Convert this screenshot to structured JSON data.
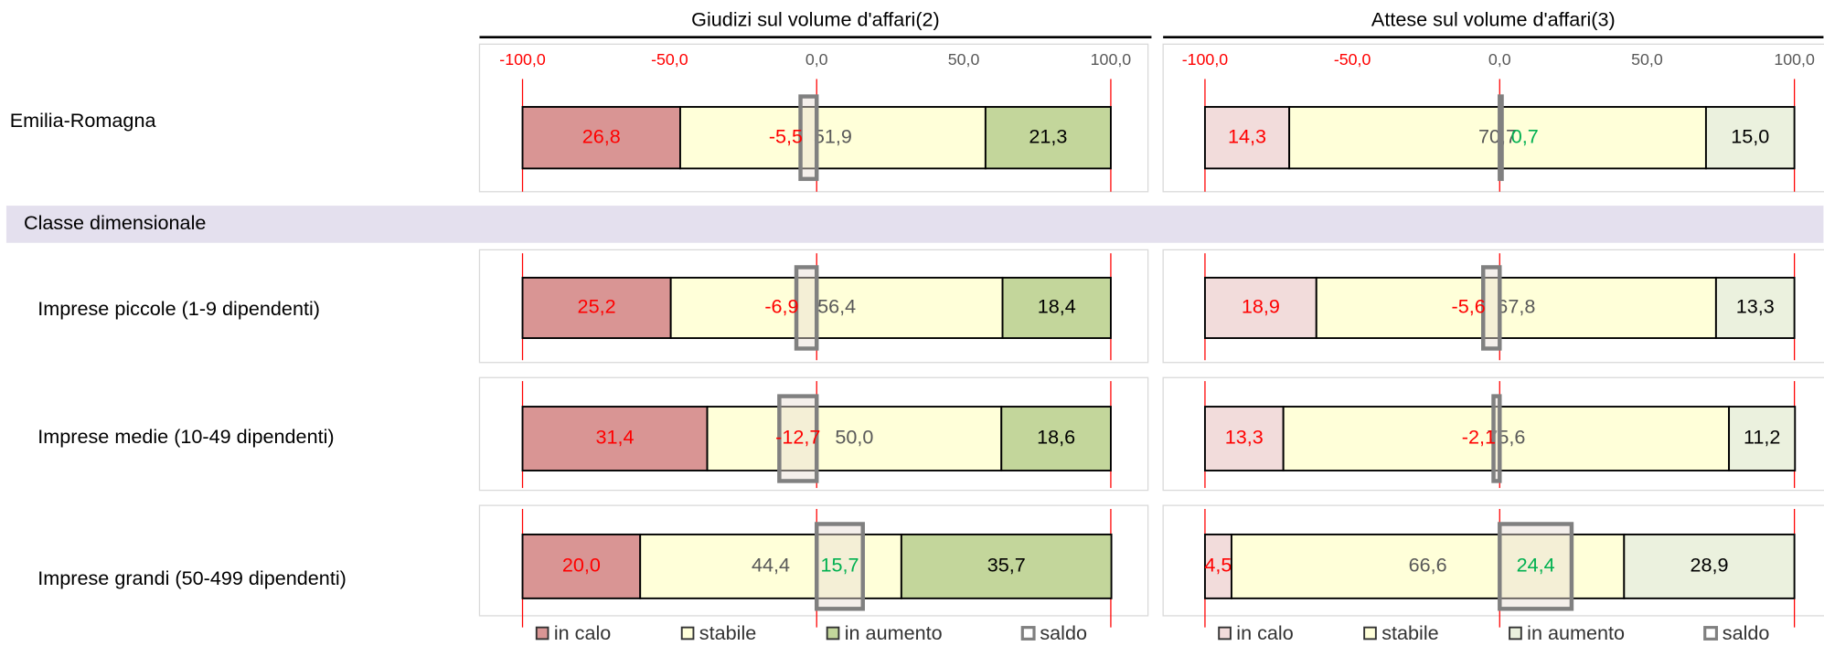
{
  "chart_data": {
    "type": "bar",
    "categories": [
      "Emilia-Romagna",
      "Imprese piccole (1-9 dipendenti)",
      "Imprese medie (10-49 dipendenti)",
      "Imprese grandi (50-499 dipendenti)"
    ],
    "section_label": "Classe dimensionale",
    "panels": [
      {
        "title": "Giudizi sul volume d'affari(2)",
        "xlim": [
          -100,
          100
        ],
        "xticks": [
          {
            "value": -100,
            "label": "-100,0"
          },
          {
            "value": -50,
            "label": "-50,0"
          },
          {
            "value": 0,
            "label": "0,0"
          },
          {
            "value": 50,
            "label": "50,0"
          },
          {
            "value": 100,
            "label": "100,0"
          }
        ],
        "series": [
          {
            "name": "in calo",
            "color": "#d99594",
            "label_color": "#ff0000",
            "values": [
              26.8,
              25.2,
              31.4,
              20.0
            ],
            "value_labels": [
              "26,8",
              "25,2",
              "31,4",
              "20,0"
            ]
          },
          {
            "name": "stabile",
            "color": "#ffffd9",
            "label_color": "#595959",
            "values": [
              51.9,
              56.4,
              50.0,
              44.4
            ],
            "value_labels": [
              "51,9",
              "56,4",
              "50,0",
              "44,4"
            ]
          },
          {
            "name": "in aumento",
            "color": "#c3d69b",
            "label_color": "#000000",
            "values": [
              21.3,
              18.4,
              18.6,
              35.7
            ],
            "value_labels": [
              "21,3",
              "18,4",
              "18,6",
              "35,7"
            ]
          }
        ],
        "saldo": {
          "name": "saldo",
          "color": "#808080",
          "negative_label_color": "#ff0000",
          "positive_label_color": "#00b050",
          "values": [
            -5.5,
            -6.9,
            -12.7,
            15.7
          ],
          "value_labels": [
            "-5,5",
            "-6,9",
            "-12,7",
            "15,7"
          ]
        }
      },
      {
        "title": "Attese sul volume d'affari(3)",
        "xlim": [
          -100,
          100
        ],
        "xticks": [
          {
            "value": -100,
            "label": "-100,0"
          },
          {
            "value": -50,
            "label": "-50,0"
          },
          {
            "value": 0,
            "label": "0,0"
          },
          {
            "value": 50,
            "label": "50,0"
          },
          {
            "value": 100,
            "label": "100,0"
          }
        ],
        "series": [
          {
            "name": "in calo",
            "color": "#f2dcdb",
            "label_color": "#ff0000",
            "values": [
              14.3,
              18.9,
              13.3,
              4.5
            ],
            "value_labels": [
              "14,3",
              "18,9",
              "13,3",
              "4,5"
            ]
          },
          {
            "name": "stabile",
            "color": "#ffffd9",
            "label_color": "#595959",
            "values": [
              70.7,
              67.8,
              75.6,
              66.6
            ],
            "value_labels": [
              "70,7",
              "67,8",
              "75,6",
              "66,6"
            ]
          },
          {
            "name": "in aumento",
            "color": "#ebf1de",
            "label_color": "#000000",
            "values": [
              15.0,
              13.3,
              11.2,
              28.9
            ],
            "value_labels": [
              "15,0",
              "13,3",
              "11,2",
              "28,9"
            ]
          }
        ],
        "saldo": {
          "name": "saldo",
          "color": "#808080",
          "negative_label_color": "#ff0000",
          "positive_label_color": "#00b050",
          "values": [
            0.7,
            -5.6,
            -2.1,
            24.4
          ],
          "value_labels": [
            "0,7",
            "-5,6",
            "-2,1",
            "24,4"
          ]
        }
      }
    ]
  }
}
